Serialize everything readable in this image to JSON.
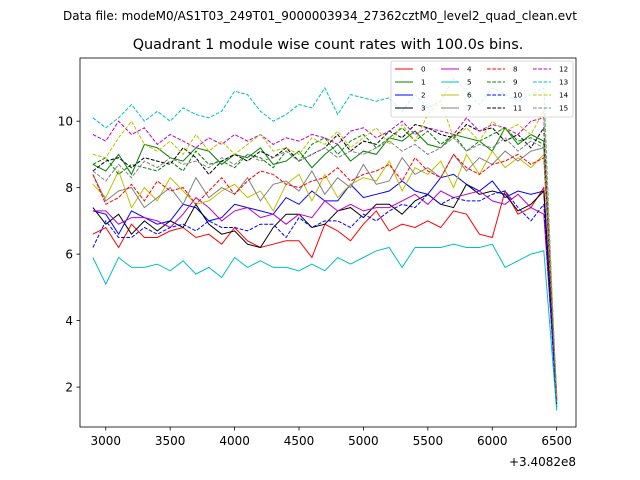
{
  "header": {
    "suptitle": "Data file: modeM0/AS1T03_249T01_9000003934_27362cztM0_level2_quad_clean.evt",
    "title": "Quadrant 1 module wise count rates with 100.0s bins."
  },
  "chart_data": {
    "type": "line",
    "x_offset_label": "+3.4082e8",
    "xlim": [
      2800,
      6650
    ],
    "ylim": [
      0.8,
      11.9
    ],
    "xticks": [
      3000,
      3500,
      4000,
      4500,
      5000,
      5500,
      6000,
      6500
    ],
    "yticks": [
      2,
      4,
      6,
      8,
      10
    ],
    "legend_position": "top-right",
    "x": [
      2900,
      3000,
      3100,
      3200,
      3300,
      3400,
      3500,
      3600,
      3700,
      3800,
      3900,
      4000,
      4100,
      4200,
      4300,
      4400,
      4500,
      4600,
      4700,
      4800,
      4900,
      5000,
      5100,
      5200,
      5300,
      5400,
      5500,
      5600,
      5700,
      5800,
      5900,
      6000,
      6100,
      6200,
      6300,
      6400,
      6500
    ],
    "series": [
      {
        "name": "0",
        "color": "#ff0000",
        "dash": "solid",
        "values": [
          6.6,
          6.8,
          6.2,
          6.9,
          6.5,
          6.5,
          6.7,
          6.8,
          6.5,
          6.6,
          6.3,
          6.8,
          6.4,
          6.2,
          6.3,
          6.4,
          6.4,
          5.9,
          6.9,
          6.7,
          6.4,
          6.9,
          7.3,
          6.7,
          6.9,
          6.8,
          7.0,
          6.8,
          7.3,
          7.2,
          6.6,
          6.5,
          7.9,
          7.2,
          7.4,
          8.0,
          1.8
        ]
      },
      {
        "name": "1",
        "color": "#008000",
        "dash": "solid",
        "values": [
          8.7,
          8.5,
          9.0,
          8.4,
          9.3,
          9.2,
          8.9,
          8.8,
          9.2,
          9.1,
          8.7,
          9.0,
          8.9,
          9.2,
          8.7,
          8.8,
          9.1,
          8.6,
          9.0,
          9.3,
          8.8,
          9.1,
          9.0,
          9.5,
          9.4,
          9.7,
          9.3,
          9.2,
          9.6,
          9.5,
          9.4,
          9.1,
          9.8,
          9.3,
          9.6,
          9.4,
          1.6
        ]
      },
      {
        "name": "2",
        "color": "#0000ff",
        "dash": "solid",
        "values": [
          7.3,
          7.2,
          6.6,
          7.3,
          7.1,
          6.9,
          7.0,
          7.5,
          7.4,
          7.0,
          7.1,
          7.5,
          7.4,
          7.3,
          7.2,
          7.7,
          7.5,
          7.9,
          7.6,
          7.6,
          8.1,
          7.7,
          7.8,
          7.9,
          8.2,
          7.9,
          7.8,
          8.3,
          8.4,
          8.1,
          7.9,
          8.2,
          7.7,
          7.9,
          7.8,
          7.9,
          1.4
        ]
      },
      {
        "name": "3",
        "color": "#000000",
        "dash": "solid",
        "values": [
          7.4,
          6.9,
          7.2,
          6.6,
          7.0,
          6.7,
          7.0,
          6.8,
          7.5,
          6.9,
          6.6,
          6.7,
          6.3,
          6.2,
          6.8,
          7.2,
          7.2,
          6.8,
          6.9,
          7.3,
          7.4,
          7.1,
          7.5,
          7.5,
          7.2,
          7.6,
          7.8,
          7.5,
          7.4,
          8.1,
          7.8,
          7.9,
          7.8,
          7.3,
          7.5,
          7.9,
          1.5
        ]
      },
      {
        "name": "4",
        "color": "#c000c0",
        "dash": "solid",
        "values": [
          7.3,
          7.3,
          6.9,
          7.1,
          7.1,
          7.0,
          6.8,
          7.2,
          7.7,
          7.4,
          7.0,
          7.3,
          7.4,
          7.1,
          7.2,
          6.9,
          7.2,
          7.1,
          7.6,
          7.3,
          7.5,
          7.3,
          7.4,
          7.4,
          7.6,
          7.8,
          7.5,
          7.9,
          7.7,
          7.8,
          7.9,
          7.6,
          7.5,
          7.8,
          7.4,
          7.2,
          1.6
        ]
      },
      {
        "name": "5",
        "color": "#00c0c0",
        "dash": "solid",
        "values": [
          5.9,
          5.1,
          5.9,
          5.6,
          5.6,
          5.7,
          5.5,
          5.8,
          5.4,
          5.6,
          5.3,
          5.9,
          5.6,
          5.8,
          5.6,
          5.6,
          5.5,
          5.7,
          5.5,
          5.9,
          5.7,
          5.9,
          6.1,
          6.2,
          5.6,
          6.2,
          6.2,
          6.2,
          6.3,
          6.2,
          6.2,
          6.3,
          5.6,
          5.8,
          6.0,
          6.1,
          1.3
        ]
      },
      {
        "name": "6",
        "color": "#c0c000",
        "dash": "solid",
        "values": [
          8.1,
          7.7,
          8.5,
          7.4,
          8.0,
          7.6,
          8.3,
          7.9,
          7.5,
          7.6,
          7.9,
          8.1,
          7.7,
          7.9,
          7.3,
          8.1,
          8.4,
          7.6,
          8.4,
          7.7,
          8.1,
          8.3,
          8.2,
          8.8,
          7.9,
          8.6,
          8.4,
          8.8,
          8.0,
          9.0,
          8.4,
          9.1,
          8.6,
          8.9,
          8.6,
          9.0,
          1.7
        ]
      },
      {
        "name": "7",
        "color": "#808080",
        "dash": "solid",
        "values": [
          8.4,
          7.6,
          7.9,
          8.0,
          7.4,
          7.7,
          8.0,
          7.5,
          8.3,
          7.7,
          8.0,
          7.8,
          8.3,
          7.6,
          8.1,
          8.2,
          7.9,
          8.5,
          7.8,
          8.3,
          8.0,
          8.7,
          8.1,
          8.2,
          8.9,
          8.4,
          8.6,
          8.3,
          9.0,
          8.5,
          8.9,
          8.7,
          9.1,
          8.8,
          9.1,
          9.2,
          1.7
        ]
      },
      {
        "name": "8",
        "color": "#ff0000",
        "dash": "dashed",
        "values": [
          8.4,
          7.5,
          7.7,
          8.1,
          7.6,
          8.2,
          7.9,
          8.0,
          7.5,
          7.9,
          8.3,
          7.8,
          8.2,
          8.5,
          8.4,
          8.1,
          8.0,
          8.2,
          8.3,
          8.6,
          8.2,
          8.4,
          8.5,
          8.7,
          8.2,
          8.9,
          8.5,
          8.3,
          9.0,
          8.6,
          8.4,
          8.7,
          8.8,
          9.0,
          8.7,
          8.9,
          1.8
        ]
      },
      {
        "name": "9",
        "color": "#008000",
        "dash": "dashed",
        "values": [
          8.7,
          8.9,
          8.4,
          8.7,
          8.6,
          8.5,
          8.8,
          8.5,
          9.1,
          8.7,
          8.8,
          8.6,
          9.0,
          8.9,
          8.6,
          9.1,
          8.8,
          9.3,
          9.5,
          9.0,
          9.4,
          9.6,
          9.2,
          9.5,
          9.8,
          9.4,
          9.7,
          9.3,
          9.6,
          9.1,
          9.4,
          9.6,
          9.8,
          9.4,
          9.5,
          9.3,
          1.6
        ]
      },
      {
        "name": "10",
        "color": "#0000ff",
        "dash": "dashed",
        "values": [
          6.2,
          7.0,
          6.5,
          6.5,
          6.8,
          6.6,
          6.8,
          6.9,
          6.7,
          7.0,
          6.8,
          6.8,
          6.7,
          6.9,
          6.9,
          6.5,
          7.1,
          6.8,
          7.0,
          7.0,
          6.8,
          7.2,
          7.0,
          7.3,
          7.5,
          7.4,
          7.8,
          7.5,
          7.7,
          7.6,
          7.6,
          7.8,
          7.9,
          7.4,
          7.0,
          7.5,
          1.4
        ]
      },
      {
        "name": "11",
        "color": "#000000",
        "dash": "dashed",
        "values": [
          8.5,
          8.8,
          8.9,
          8.6,
          8.9,
          8.8,
          8.7,
          9.2,
          8.9,
          8.4,
          8.8,
          9.0,
          8.8,
          9.1,
          8.9,
          9.2,
          8.8,
          9.0,
          9.2,
          9.6,
          9.1,
          9.4,
          9.3,
          9.7,
          9.5,
          9.9,
          9.8,
          9.6,
          9.5,
          9.9,
          9.7,
          9.8,
          9.4,
          9.6,
          9.2,
          9.8,
          1.5
        ]
      },
      {
        "name": "12",
        "color": "#c000c0",
        "dash": "dashed",
        "values": [
          9.6,
          9.4,
          10.0,
          9.6,
          9.8,
          9.3,
          9.6,
          9.4,
          9.2,
          9.5,
          9.3,
          9.6,
          9.4,
          9.6,
          9.3,
          9.5,
          9.4,
          9.6,
          9.5,
          9.3,
          9.7,
          9.8,
          9.5,
          9.7,
          10.0,
          9.6,
          9.8,
          9.7,
          9.6,
          10.1,
          9.7,
          9.9,
          9.8,
          9.6,
          10.0,
          10.1,
          1.6
        ]
      },
      {
        "name": "13",
        "color": "#00c0c0",
        "dash": "dashed",
        "values": [
          10.1,
          9.8,
          10.1,
          10.5,
          10.0,
          10.3,
          10.0,
          10.4,
          10.2,
          10.1,
          10.3,
          10.9,
          10.8,
          10.3,
          10.0,
          10.2,
          10.5,
          10.4,
          11.0,
          10.2,
          10.8,
          10.7,
          10.6,
          10.7,
          10.3,
          10.8,
          10.4,
          10.6,
          11.3,
          10.9,
          10.5,
          11.0,
          10.8,
          10.6,
          10.8,
          11.0,
          1.3
        ]
      },
      {
        "name": "14",
        "color": "#c0c000",
        "dash": "dashed",
        "values": [
          9.0,
          8.9,
          9.5,
          10.0,
          9.3,
          9.1,
          9.4,
          9.0,
          9.6,
          9.1,
          9.4,
          9.0,
          9.3,
          9.6,
          9.1,
          9.2,
          9.0,
          9.5,
          9.3,
          9.7,
          9.2,
          9.5,
          9.8,
          9.3,
          9.9,
          9.4,
          10.2,
          10.6,
          9.5,
          9.8,
          9.4,
          10.0,
          9.7,
          9.9,
          9.6,
          10.3,
          1.7
        ]
      },
      {
        "name": "15",
        "color": "#808080",
        "dash": "dashed",
        "values": [
          8.5,
          8.2,
          8.7,
          8.3,
          8.8,
          8.6,
          8.9,
          8.7,
          8.8,
          8.6,
          8.9,
          8.7,
          9.0,
          8.8,
          8.9,
          9.1,
          8.8,
          9.0,
          9.2,
          8.9,
          9.1,
          9.0,
          9.2,
          9.4,
          9.1,
          9.3,
          9.0,
          9.2,
          9.5,
          9.1,
          9.3,
          9.2,
          9.5,
          9.1,
          9.4,
          9.2,
          1.7
        ]
      }
    ]
  }
}
